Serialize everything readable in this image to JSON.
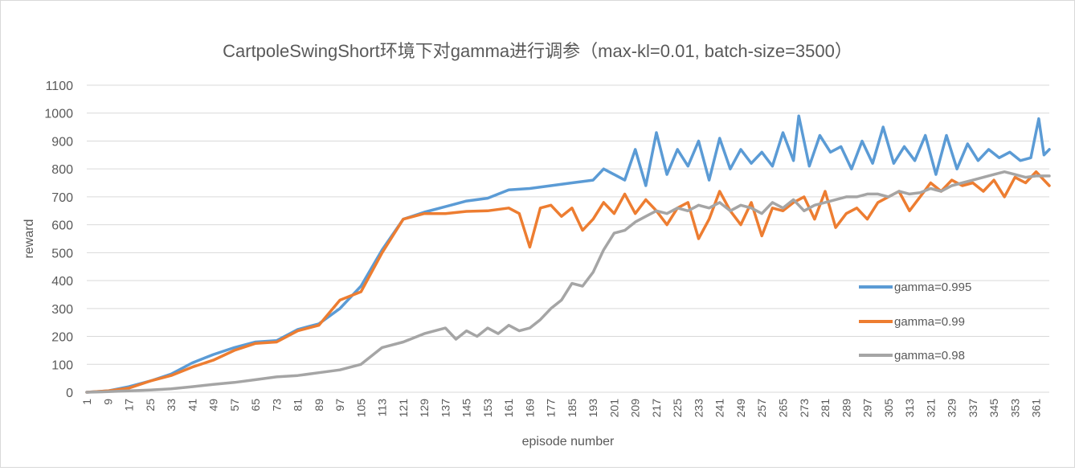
{
  "chart_data": {
    "type": "line",
    "title": "CartpoleSwingShort环境下对gamma进行调参（max-kl=0.01, batch-size=3500）",
    "xlabel": "episode number",
    "ylabel": "reward",
    "ylim": [
      0,
      1100
    ],
    "yticks": [
      0,
      100,
      200,
      300,
      400,
      500,
      600,
      700,
      800,
      900,
      1000,
      1100
    ],
    "xlim": [
      1,
      366
    ],
    "xticks": [
      1,
      9,
      17,
      25,
      33,
      41,
      49,
      57,
      65,
      73,
      81,
      89,
      97,
      105,
      113,
      121,
      129,
      137,
      145,
      153,
      161,
      169,
      177,
      185,
      193,
      201,
      209,
      217,
      225,
      233,
      241,
      249,
      257,
      265,
      273,
      281,
      289,
      297,
      305,
      313,
      321,
      329,
      337,
      345,
      353,
      361
    ],
    "grid": "horizontal",
    "legend_position": "right",
    "series": [
      {
        "name": "gamma=0.995",
        "color": "#5b9bd5",
        "x": [
          1,
          9,
          17,
          25,
          33,
          41,
          49,
          57,
          65,
          73,
          81,
          89,
          97,
          105,
          113,
          121,
          129,
          137,
          145,
          153,
          161,
          169,
          177,
          185,
          193,
          197,
          201,
          205,
          209,
          213,
          217,
          221,
          225,
          229,
          233,
          237,
          241,
          245,
          249,
          253,
          257,
          261,
          265,
          269,
          271,
          275,
          279,
          283,
          287,
          291,
          295,
          299,
          303,
          307,
          311,
          315,
          319,
          323,
          327,
          331,
          335,
          339,
          343,
          347,
          351,
          355,
          359,
          362,
          364,
          366
        ],
        "values": [
          0,
          5,
          20,
          40,
          65,
          105,
          135,
          160,
          180,
          185,
          225,
          245,
          300,
          380,
          510,
          620,
          645,
          665,
          685,
          695,
          725,
          730,
          740,
          750,
          760,
          800,
          780,
          760,
          870,
          740,
          930,
          780,
          870,
          810,
          900,
          760,
          910,
          800,
          870,
          820,
          860,
          810,
          930,
          830,
          990,
          810,
          920,
          860,
          880,
          800,
          900,
          820,
          950,
          820,
          880,
          830,
          920,
          780,
          920,
          800,
          890,
          830,
          870,
          840,
          860,
          830,
          840,
          980,
          850,
          870
        ]
      },
      {
        "name": "gamma=0.99",
        "color": "#ed7d31",
        "x": [
          1,
          9,
          17,
          25,
          33,
          41,
          49,
          57,
          65,
          73,
          81,
          89,
          97,
          105,
          113,
          121,
          129,
          137,
          145,
          153,
          161,
          165,
          169,
          173,
          177,
          181,
          185,
          189,
          193,
          197,
          201,
          205,
          209,
          213,
          217,
          221,
          225,
          229,
          233,
          237,
          241,
          245,
          249,
          253,
          257,
          261,
          265,
          269,
          273,
          277,
          281,
          285,
          289,
          293,
          297,
          301,
          305,
          309,
          313,
          317,
          321,
          325,
          329,
          333,
          337,
          341,
          345,
          349,
          353,
          357,
          361,
          364,
          366
        ],
        "values": [
          0,
          5,
          15,
          40,
          60,
          90,
          115,
          150,
          175,
          180,
          220,
          240,
          330,
          360,
          500,
          620,
          640,
          640,
          648,
          650,
          660,
          640,
          520,
          660,
          670,
          630,
          660,
          580,
          620,
          680,
          640,
          710,
          640,
          690,
          650,
          600,
          660,
          680,
          550,
          620,
          720,
          650,
          600,
          680,
          560,
          660,
          650,
          680,
          700,
          620,
          720,
          590,
          640,
          660,
          620,
          680,
          700,
          720,
          650,
          700,
          750,
          720,
          760,
          740,
          750,
          720,
          760,
          700,
          770,
          750,
          790,
          760,
          740
        ]
      },
      {
        "name": "gamma=0.98",
        "color": "#a5a5a5",
        "x": [
          1,
          9,
          17,
          25,
          33,
          41,
          49,
          57,
          65,
          73,
          81,
          89,
          97,
          105,
          113,
          121,
          129,
          137,
          141,
          145,
          149,
          153,
          157,
          161,
          165,
          169,
          173,
          177,
          181,
          185,
          189,
          193,
          197,
          201,
          205,
          209,
          213,
          217,
          221,
          225,
          229,
          233,
          237,
          241,
          245,
          249,
          253,
          257,
          261,
          265,
          269,
          273,
          277,
          281,
          285,
          289,
          293,
          297,
          301,
          305,
          309,
          313,
          317,
          321,
          325,
          329,
          333,
          337,
          341,
          345,
          349,
          353,
          357,
          361,
          364,
          366
        ],
        "values": [
          0,
          2,
          5,
          8,
          12,
          20,
          28,
          35,
          45,
          55,
          60,
          70,
          80,
          100,
          160,
          180,
          210,
          230,
          190,
          220,
          200,
          230,
          210,
          240,
          220,
          230,
          260,
          300,
          330,
          390,
          380,
          430,
          510,
          570,
          580,
          610,
          630,
          650,
          640,
          660,
          650,
          670,
          660,
          680,
          650,
          670,
          660,
          640,
          680,
          660,
          690,
          650,
          670,
          680,
          690,
          700,
          700,
          710,
          710,
          700,
          720,
          710,
          715,
          730,
          720,
          740,
          750,
          760,
          770,
          780,
          790,
          780,
          770,
          775,
          775,
          775
        ]
      }
    ]
  }
}
